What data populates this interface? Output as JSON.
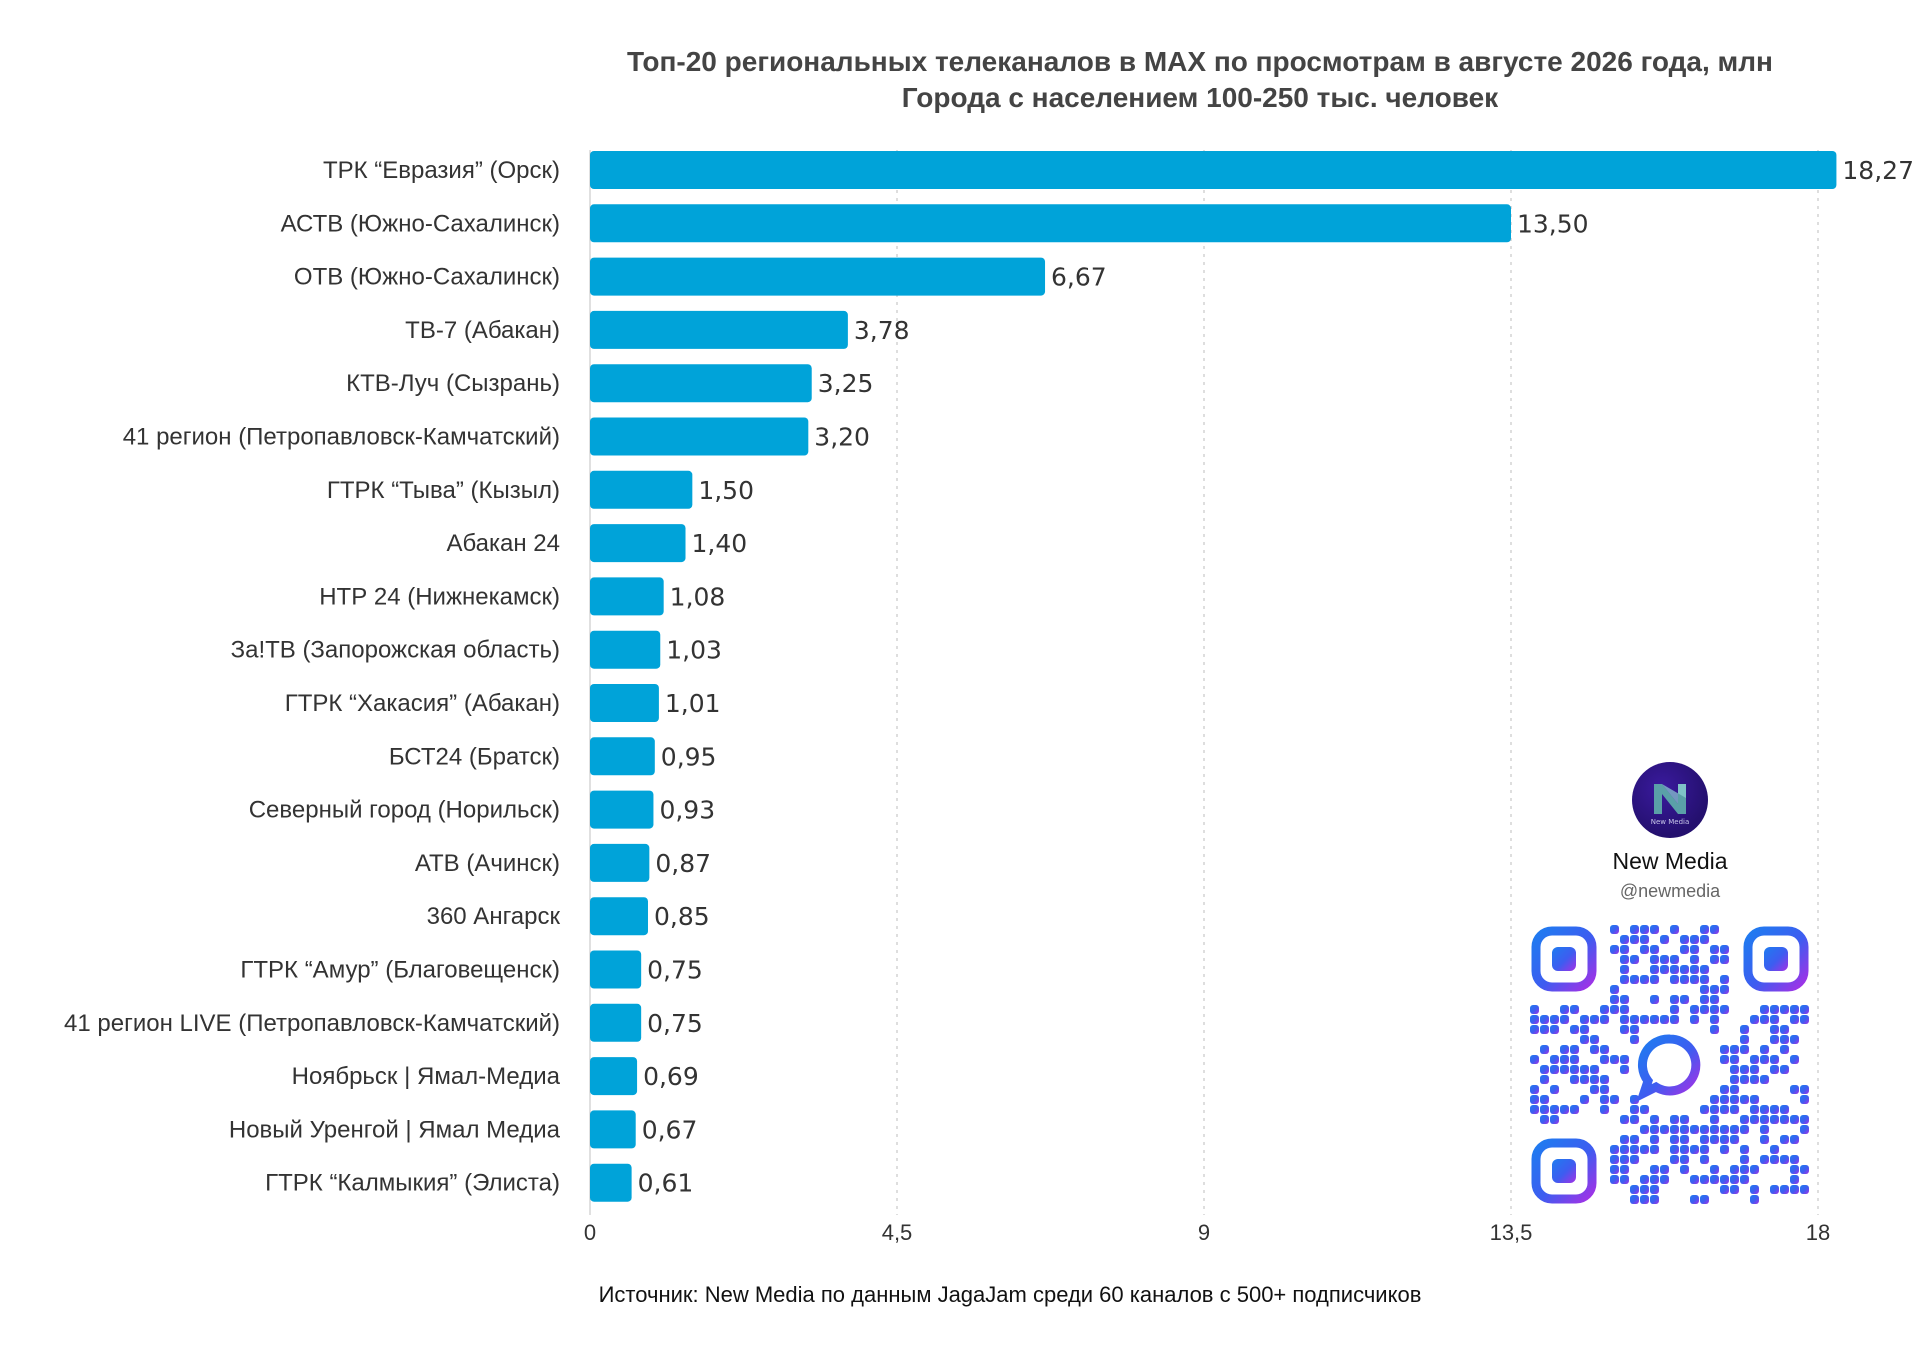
{
  "chart_data": {
    "type": "bar",
    "orientation": "horizontal",
    "title": "Топ-20 региональных телеканалов в MAX по просмотрам в августе 2026 года, млн",
    "subtitle": "Города с населением 100-250 тыс. человек",
    "categories": [
      "ТРК “Евразия” (Орск)",
      "АСТВ (Южно-Сахалинск)",
      "ОТВ (Южно-Сахалинск)",
      "ТВ-7 (Абакан)",
      "КТВ-Луч (Сызрань)",
      "41 регион (Петропавловск-Камчатский)",
      "ГТРК “Тыва” (Кызыл)",
      "Абакан 24",
      "НТР 24 (Нижнекамск)",
      "За!ТВ (Запорожская область)",
      "ГТРК “Хакасия” (Абакан)",
      "БСТ24 (Братск)",
      "Северный город (Норильск)",
      "АТВ (Ачинск)",
      "360 Ангарск",
      "ГТРК “Амур” (Благовещенск)",
      "41 регион LIVE (Петропавловск-Камчатский)",
      "Ноябрьск | Ямал-Медиа",
      "Новый Уренгой | Ямал Медиа",
      "ГТРК “Калмыкия” (Элиста)"
    ],
    "values": [
      18.27,
      13.5,
      6.67,
      3.78,
      3.25,
      3.2,
      1.5,
      1.4,
      1.08,
      1.03,
      1.01,
      0.95,
      0.93,
      0.87,
      0.85,
      0.75,
      0.75,
      0.69,
      0.67,
      0.61
    ],
    "value_labels": [
      "18,27",
      "13,50",
      "6,67",
      "3,78",
      "3,25",
      "3,20",
      "1,50",
      "1,40",
      "1,08",
      "1,03",
      "1,01",
      "0,95",
      "0,93",
      "0,87",
      "0,85",
      "0,75",
      "0,75",
      "0,69",
      "0,67",
      "0,61"
    ],
    "xlim": [
      0,
      18
    ],
    "xticks": [
      0,
      4.5,
      9,
      13.5,
      18
    ],
    "xtick_labels": [
      "0",
      "4,5",
      "9",
      "13,5",
      "18"
    ],
    "grid": "vertical dashed",
    "bar_color": "#00a3d9",
    "source": "Источник: New Media по данным JagaJam среди 60 каналов с 500+ подписчиков"
  },
  "brand": {
    "name": "New Media",
    "handle": "@newmedia",
    "logo_text": "New Media",
    "logo_icon": "new-media-logo-icon",
    "qr_icon": "qr-code-icon"
  }
}
